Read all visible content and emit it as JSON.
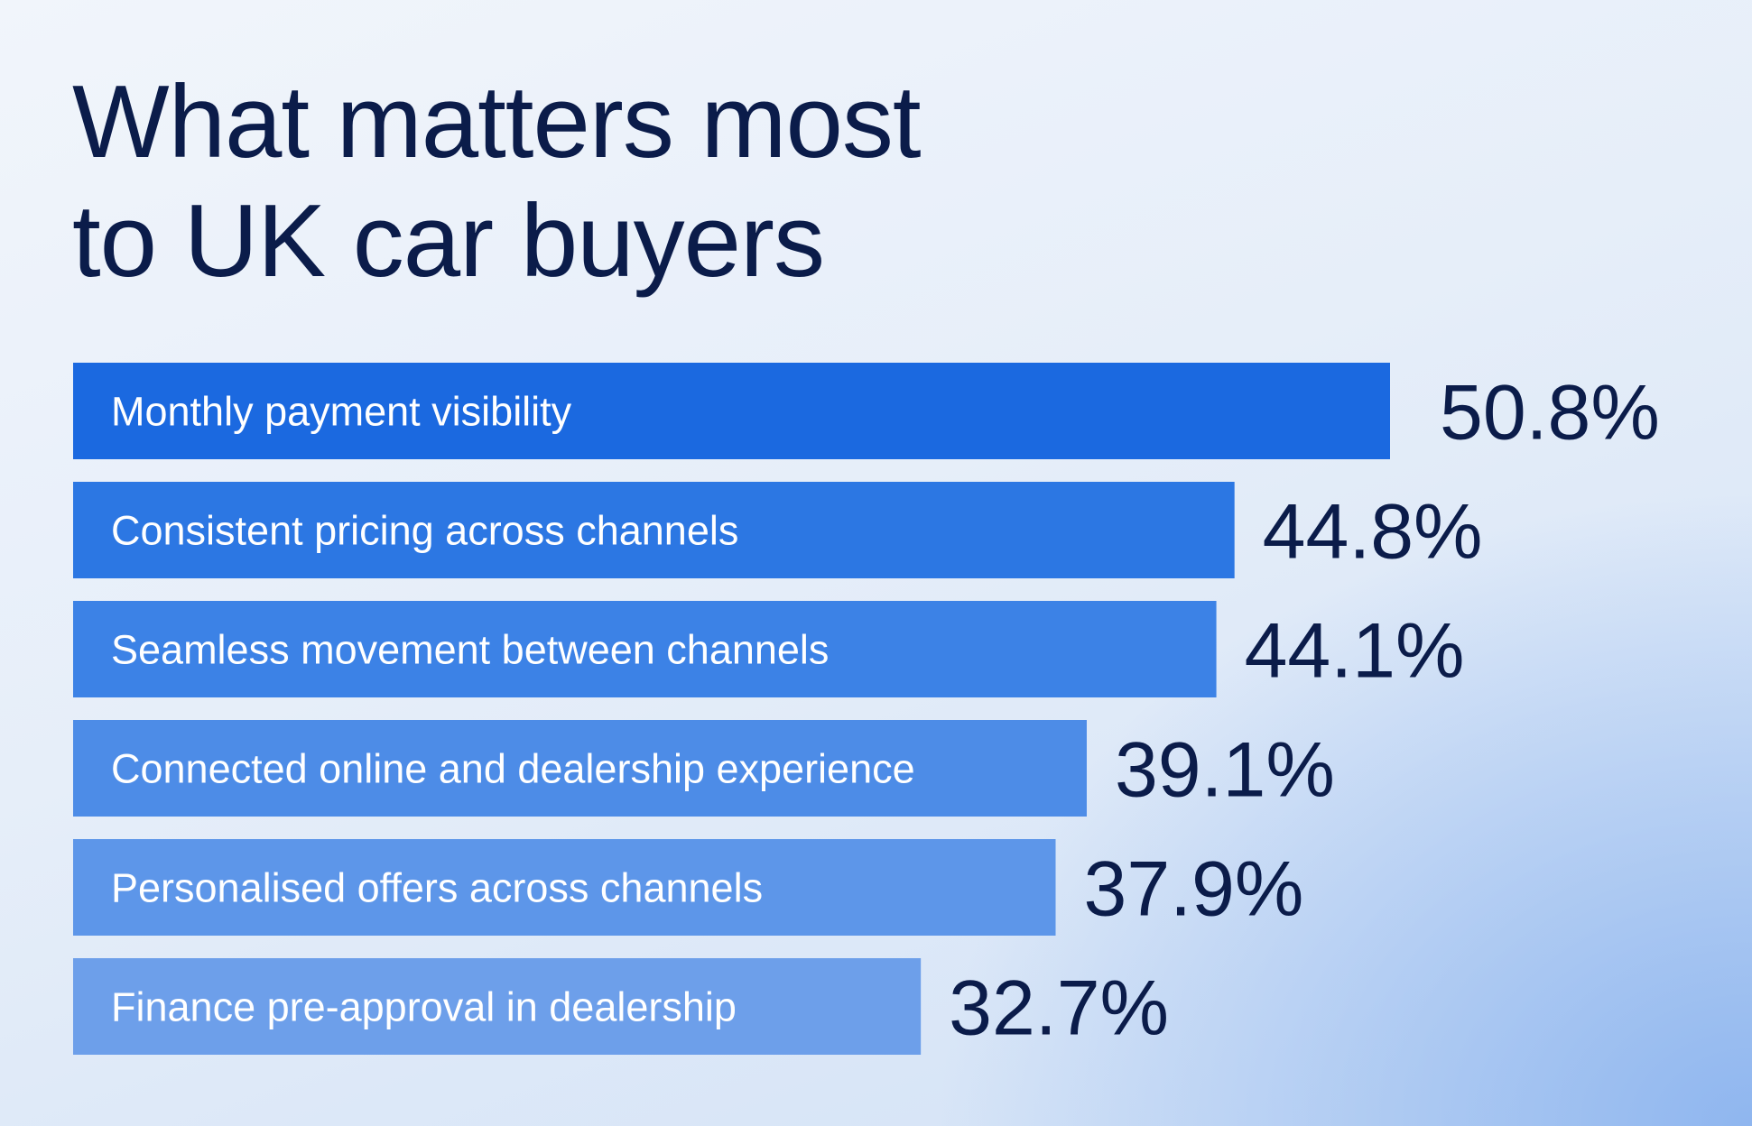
{
  "title_lines": [
    "What matters most",
    "to UK car buyers"
  ],
  "chart_data": {
    "type": "bar",
    "orientation": "horizontal",
    "title": "What matters most to UK car buyers",
    "categories": [
      "Monthly payment visibility",
      "Consistent pricing across channels",
      "Seamless movement between channels",
      "Connected online and dealership experience",
      "Personalised offers across channels",
      "Finance pre-approval in dealership"
    ],
    "values": [
      50.8,
      44.8,
      44.1,
      39.1,
      37.9,
      32.7
    ],
    "value_labels": [
      "50.8%",
      "44.8%",
      "44.1%",
      "39.1%",
      "37.9%",
      "32.7%"
    ],
    "unit": "%",
    "bar_colors": [
      "#1b69e0",
      "#2c77e3",
      "#3c82e6",
      "#4d8ce7",
      "#5d96e9",
      "#6d9fea"
    ],
    "axes_visible": false,
    "grid": false,
    "legend": "none"
  }
}
